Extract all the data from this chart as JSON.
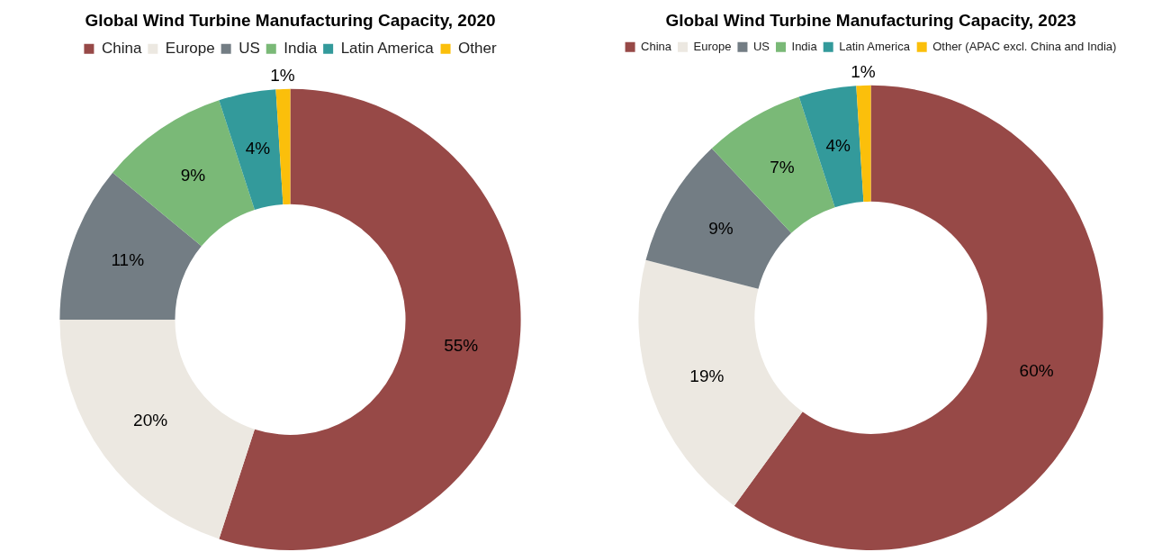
{
  "chart_data": [
    {
      "type": "donut",
      "title": "Global Wind Turbine Manufacturing Capacity, 2020",
      "legend": "top",
      "categories": [
        "China",
        "Europe",
        "US",
        "India",
        "Latin America",
        "Other"
      ],
      "values": [
        55,
        20,
        11,
        9,
        4,
        1
      ],
      "value_labels": [
        "55%",
        "20%",
        "11%",
        "9%",
        "4%",
        "1%"
      ],
      "colors": [
        "#974947",
        "#ece8e1",
        "#737d84",
        "#7ab977",
        "#339a9b",
        "#fbbf0b"
      ]
    },
    {
      "type": "donut",
      "title": "Global Wind Turbine Manufacturing Capacity, 2023",
      "legend": "top",
      "categories": [
        "China",
        "Europe",
        "US",
        "India",
        "Latin America",
        "Other (APAC excl. China and India)"
      ],
      "values": [
        60,
        19,
        9,
        7,
        4,
        1
      ],
      "value_labels": [
        "60%",
        "19%",
        "9%",
        "7%",
        "4%",
        "1%"
      ],
      "colors": [
        "#974947",
        "#ece8e1",
        "#737d84",
        "#7ab977",
        "#339a9b",
        "#fbbf0b"
      ]
    }
  ]
}
